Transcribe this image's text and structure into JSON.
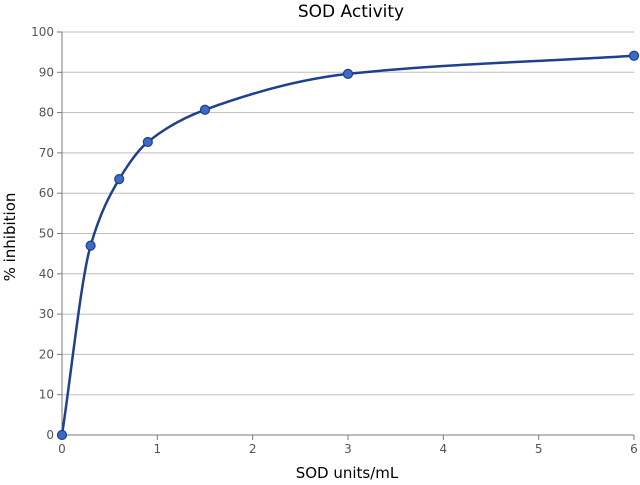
{
  "chart_data": {
    "type": "line",
    "title": "SOD Activity",
    "xlabel": "SOD units/mL",
    "ylabel": "% inhibition",
    "xlim": [
      0,
      6
    ],
    "ylim": [
      0,
      100
    ],
    "xticks": [
      0,
      1,
      2,
      3,
      4,
      5,
      6
    ],
    "yticks": [
      0,
      10,
      20,
      30,
      40,
      50,
      60,
      70,
      80,
      90,
      100
    ],
    "grid": true,
    "smooth": true,
    "series": [
      {
        "color": "#1f3f8f",
        "marker_color": "#3c6bc4",
        "points": [
          {
            "x": 0,
            "y": 0
          },
          {
            "x": 0.3,
            "y": 47
          },
          {
            "x": 0.6,
            "y": 63.5
          },
          {
            "x": 0.9,
            "y": 72.7
          },
          {
            "x": 1.5,
            "y": 80.7
          },
          {
            "x": 3.0,
            "y": 89.6
          },
          {
            "x": 6.0,
            "y": 94.1
          }
        ]
      }
    ]
  }
}
